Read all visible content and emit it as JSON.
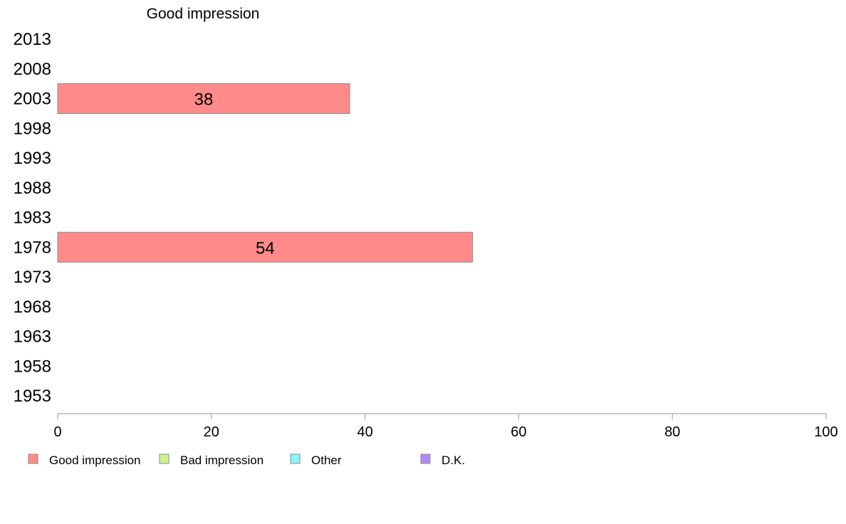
{
  "chart_data": {
    "type": "bar",
    "orientation": "horizontal",
    "title": "Good impression",
    "categories": [
      "2013",
      "2008",
      "2003",
      "1998",
      "1993",
      "1988",
      "1983",
      "1978",
      "1973",
      "1968",
      "1963",
      "1958",
      "1953"
    ],
    "series": [
      {
        "name": "Good impression",
        "color": "#ff8a8a",
        "values": [
          null,
          null,
          38,
          null,
          null,
          null,
          null,
          54,
          null,
          null,
          null,
          null,
          null
        ]
      }
    ],
    "xlim": [
      0,
      100
    ],
    "xticks": [
      0,
      20,
      40,
      60,
      80,
      100
    ],
    "legend": [
      {
        "label": "Good impression",
        "color": "#ff8a8a"
      },
      {
        "label": "Bad impression",
        "color": "#c8f58a"
      },
      {
        "label": "Other",
        "color": "#8af5f5"
      },
      {
        "label": "D.K.",
        "color": "#b08af5"
      }
    ],
    "legend_position": "bottom",
    "grid": false
  }
}
